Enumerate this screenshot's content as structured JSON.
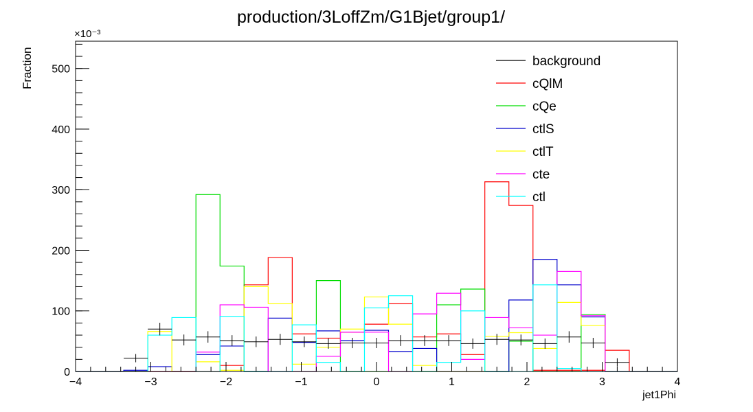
{
  "chart_data": {
    "type": "histogram",
    "title": "production/3LoffZm/G1Bjet/group1/",
    "xlabel": "jet1Phi",
    "ylabel": "Fraction",
    "y_multiplier": "×10⁻³",
    "xlim": [
      -4,
      4
    ],
    "ylim": [
      0,
      545
    ],
    "x_ticks": [
      -4,
      -3,
      -2,
      -1,
      0,
      1,
      2,
      3,
      4
    ],
    "x_tick_labels": [
      "−4",
      "−3",
      "−2",
      "−1",
      "0",
      "1",
      "2",
      "3",
      "4"
    ],
    "y_ticks": [
      0,
      100,
      200,
      300,
      400,
      500
    ],
    "y_tick_labels": [
      "0",
      "100",
      "200",
      "300",
      "400",
      "500"
    ],
    "bin_edges": [
      -4.0,
      -3.68,
      -3.36,
      -3.04,
      -2.72,
      -2.4,
      -2.08,
      -1.76,
      -1.44,
      -1.12,
      -0.8,
      -0.48,
      -0.16,
      0.16,
      0.48,
      0.8,
      1.12,
      1.44,
      1.76,
      2.08,
      2.4,
      2.72,
      3.04,
      3.36,
      3.68,
      4.0
    ],
    "legend_position": "top-right",
    "series": [
      {
        "name": "background",
        "color": "#000000",
        "style": "points",
        "values": [
          0,
          0,
          22,
          70,
          52,
          57,
          51,
          49,
          53,
          49,
          46,
          47,
          47,
          51,
          51,
          51,
          46,
          53,
          52,
          46,
          57,
          47,
          15,
          0,
          0
        ]
      },
      {
        "name": "cQlM",
        "color": "#ff0000",
        "style": "step",
        "values": [
          0,
          0,
          0,
          0,
          0,
          0,
          10,
          143,
          188,
          62,
          55,
          65,
          78,
          112,
          57,
          62,
          28,
          313,
          274,
          2,
          2,
          2,
          35,
          0,
          0
        ]
      },
      {
        "name": "cQe",
        "color": "#00dd00",
        "style": "step",
        "values": [
          0,
          0,
          0,
          0,
          0,
          292,
          174,
          0,
          0,
          0,
          150,
          0,
          0,
          0,
          0,
          110,
          136,
          0,
          50,
          0,
          0,
          94,
          0,
          0,
          0
        ]
      },
      {
        "name": "ctlS",
        "color": "#0000cc",
        "style": "step",
        "values": [
          0,
          0,
          2,
          8,
          0,
          28,
          42,
          0,
          88,
          48,
          67,
          51,
          68,
          33,
          38,
          0,
          0,
          0,
          118,
          185,
          143,
          90,
          0,
          0,
          0
        ]
      },
      {
        "name": "ctlT",
        "color": "#ffff00",
        "style": "step",
        "values": [
          0,
          0,
          0,
          66,
          0,
          16,
          2,
          140,
          112,
          12,
          40,
          70,
          123,
          78,
          10,
          0,
          0,
          58,
          64,
          38,
          114,
          76,
          0,
          0,
          0
        ]
      },
      {
        "name": "cte",
        "color": "#ff00ff",
        "style": "step",
        "values": [
          0,
          0,
          0,
          0,
          0,
          32,
          110,
          106,
          0,
          0,
          25,
          65,
          65,
          0,
          95,
          129,
          20,
          89,
          72,
          60,
          165,
          92,
          0,
          0,
          0
        ]
      },
      {
        "name": "ctl",
        "color": "#00ffff",
        "style": "step",
        "values": [
          0,
          0,
          0,
          60,
          89,
          0,
          91,
          0,
          0,
          77,
          15,
          0,
          105,
          125,
          0,
          15,
          100,
          0,
          0,
          143,
          5,
          0,
          0,
          0,
          0
        ]
      }
    ]
  }
}
